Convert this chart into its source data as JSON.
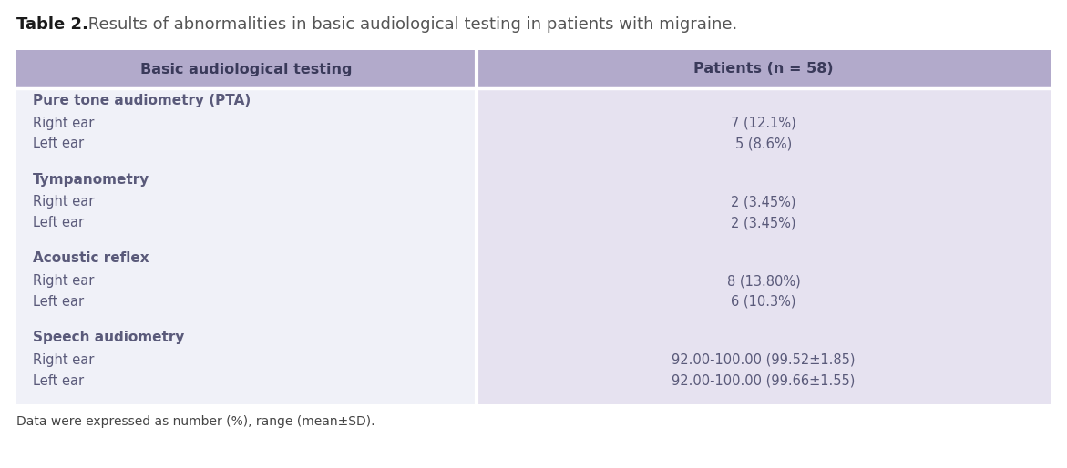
{
  "title_bold": "Table 2.",
  "title_rest": " Results of abnormalities in basic audiological testing in patients with migraine.",
  "col1_header": "Basic audiological testing",
  "col2_header": "Patients (n = 58)",
  "header_bg": "#b2aacb",
  "col1_bg": "#f0f1f8",
  "col2_bg": "#e6e2f0",
  "rows": [
    {
      "label": "Pure tone audiometry (PTA)",
      "value": "",
      "bold": true
    },
    {
      "label": "Right ear",
      "value": "7 (12.1%)",
      "bold": false
    },
    {
      "label": "Left ear",
      "value": "5 (8.6%)",
      "bold": false
    },
    {
      "label": "",
      "value": "",
      "bold": false
    },
    {
      "label": "Tympanometry",
      "value": "",
      "bold": true
    },
    {
      "label": "Right ear",
      "value": "2 (3.45%)",
      "bold": false
    },
    {
      "label": "Left ear",
      "value": "2 (3.45%)",
      "bold": false
    },
    {
      "label": "",
      "value": "",
      "bold": false
    },
    {
      "label": "Acoustic reflex",
      "value": "",
      "bold": true
    },
    {
      "label": "Right ear",
      "value": "8 (13.80%)",
      "bold": false
    },
    {
      "label": "Left ear",
      "value": "6 (10.3%)",
      "bold": false
    },
    {
      "label": "",
      "value": "",
      "bold": false
    },
    {
      "label": "Speech audiometry",
      "value": "",
      "bold": true
    },
    {
      "label": "Right ear",
      "value": "92.00-100.00 (99.52±1.85)",
      "bold": false
    },
    {
      "label": "Left ear",
      "value": "92.00-100.00 (99.66±1.55)",
      "bold": false
    },
    {
      "label": "",
      "value": "",
      "bold": false
    }
  ],
  "footnote": "Data were expressed as number (%), range (mean±SD).",
  "text_color": "#5a5a7a",
  "header_text_color": "#3a3a5a",
  "title_bold_color": "#1a1a1a",
  "title_rest_color": "#555555",
  "figure_bg": "#ffffff",
  "fig_width": 11.71,
  "fig_height": 5.14,
  "dpi": 100
}
